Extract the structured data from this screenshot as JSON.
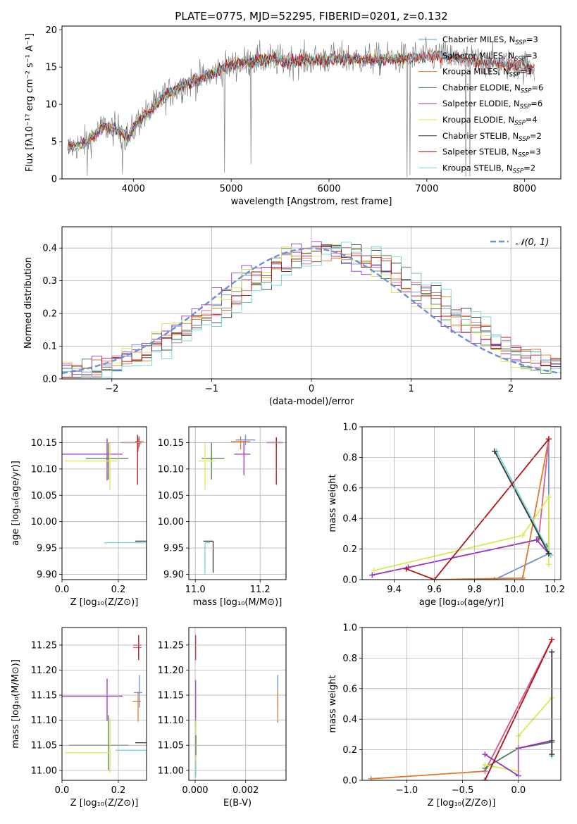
{
  "figure_title": "PLATE=0775, MJD=52295, FIBERID=0201, z=0.132",
  "colors": {
    "chabrier_miles": "#6a90d8",
    "salpeter_miles": "#e05c8a",
    "kroupa_miles": "#e07a2a",
    "chabrier_elodie": "#4d7f4a",
    "salpeter_elodie": "#9b30c0",
    "kroupa_elodie": "#d8ea50",
    "chabrier_stelib": "#333333",
    "salpeter_stelib": "#b01818",
    "kroupa_stelib": "#70d8d8",
    "normal": "#6a90d8",
    "grid": "#b0b0b0"
  },
  "legend_spectrum": [
    {
      "label": "Chabrier MILES, N",
      "sub": "SSP",
      "suffix": "=3",
      "color": "#6a90d8"
    },
    {
      "label": "Salpeter MILES, N",
      "sub": "SSP",
      "suffix": "=3",
      "color": "#e05c8a"
    },
    {
      "label": "Kroupa MILES, N",
      "sub": "SSP",
      "suffix": "=3",
      "color": "#e07a2a"
    },
    {
      "label": "Chabrier ELODIE, N",
      "sub": "SSP",
      "suffix": "=6",
      "color": "#4d7f4a"
    },
    {
      "label": "Salpeter ELODIE, N",
      "sub": "SSP",
      "suffix": "=6",
      "color": "#9b30c0"
    },
    {
      "label": "Kroupa ELODIE, N",
      "sub": "SSP",
      "suffix": "=4",
      "color": "#d8ea50"
    },
    {
      "label": "Chabrier STELIB, N",
      "sub": "SSP",
      "suffix": "=2",
      "color": "#333333"
    },
    {
      "label": "Salpeter STELIB, N",
      "sub": "SSP",
      "suffix": "=3",
      "color": "#b01818"
    },
    {
      "label": "Kroupa STELIB, N",
      "sub": "SSP",
      "suffix": "=2",
      "color": "#70d8d8"
    }
  ],
  "chart_data": [
    {
      "id": "spectrum",
      "type": "line",
      "xlabel": "wavelength [Angstrom, rest frame]",
      "ylabel": "Flux [fλ10⁻¹⁷ erg cm⁻² s⁻¹ A⁻¹]",
      "xlim": [
        3270,
        8370
      ],
      "ylim": [
        0,
        20.5
      ],
      "xticks": [
        4000,
        5000,
        6000,
        7000,
        8000
      ],
      "yticks": [
        0,
        5,
        10,
        15,
        20
      ],
      "grid": false,
      "legend_position": "right",
      "envelope_anchors": {
        "x": [
          3350,
          3500,
          3700,
          3850,
          3950,
          4050,
          4150,
          4300,
          4500,
          4700,
          4900,
          5100,
          5300,
          5600,
          5900,
          6200,
          6500,
          6800,
          7100,
          7400,
          7700,
          8000,
          8100
        ],
        "y": [
          4.2,
          4.8,
          7.0,
          6.5,
          5.5,
          7.8,
          8.8,
          11.0,
          12.5,
          13.5,
          14.8,
          15.5,
          16.0,
          15.8,
          16.0,
          16.1,
          16.0,
          16.2,
          16.5,
          16.0,
          15.6,
          15.1,
          14.8
        ]
      },
      "dropouts": [
        {
          "x": 3530,
          "y": 0.4
        },
        {
          "x": 3890,
          "y": 0.6
        },
        {
          "x": 4930,
          "y": 0.8
        },
        {
          "x": 5200,
          "y": 2.0
        },
        {
          "x": 6800,
          "y": 0.2
        },
        {
          "x": 6830,
          "y": 0.5
        },
        {
          "x": 7400,
          "y": 0.3
        },
        {
          "x": 7440,
          "y": 0.3
        }
      ]
    },
    {
      "id": "residual_hist",
      "type": "histogram",
      "xlabel": "(data-model)/error",
      "ylabel": "Normed distribution",
      "xlim": [
        -2.5,
        2.5
      ],
      "ylim": [
        0,
        0.465
      ],
      "xticks": [
        -2,
        -1,
        0,
        1,
        2
      ],
      "yticks": [
        0.0,
        0.1,
        0.2,
        0.3,
        0.4
      ],
      "grid": true,
      "bin_width": 0.1,
      "legend": [
        {
          "label": "𝒩(0, 1)",
          "style": "dashed",
          "color": "#6a90d8"
        }
      ],
      "legend_position": "top-right",
      "reference_curve": {
        "name": "𝒩(0, 1)",
        "mu": 0,
        "sigma": 1
      }
    },
    {
      "id": "age_vs_Z",
      "type": "errorbar",
      "xlabel": "Z [log₁₀(Z/Z⊙)]",
      "ylabel": "age  [log₁₀(age/yr)]",
      "xlim": [
        0.0,
        0.3
      ],
      "ylim": [
        9.89,
        10.18
      ],
      "xticks": [
        0.0,
        0.2
      ],
      "yticks": [
        9.9,
        9.95,
        10.0,
        10.05,
        10.1,
        10.15
      ],
      "ytick_labels": [
        "9.90",
        "9.95",
        "10.00",
        "10.05",
        "10.10",
        "10.15"
      ],
      "grid": true,
      "points": [
        {
          "model": "chabrier_miles",
          "x": 0.275,
          "xerr": [
            0.01,
            0.01
          ],
          "y": 10.152,
          "yerr": [
            0.01,
            0.01
          ]
        },
        {
          "model": "salpeter_miles",
          "x": 0.272,
          "xerr": [
            0.0,
            0.01
          ],
          "y": 10.148,
          "yerr": [
            0.01,
            0.01
          ]
        },
        {
          "model": "kroupa_miles",
          "x": 0.27,
          "xerr": [
            0.01,
            0.02
          ],
          "y": 10.152,
          "yerr": [
            0.02,
            0.01
          ]
        },
        {
          "model": "chabrier_elodie",
          "x": 0.165,
          "xerr": [
            0.08,
            0.07
          ],
          "y": 10.12,
          "yerr": [
            0.04,
            0.03
          ]
        },
        {
          "model": "salpeter_elodie",
          "x": 0.16,
          "xerr": [
            0.16,
            0.055
          ],
          "y": 10.128,
          "yerr": [
            0.05,
            0.03
          ]
        },
        {
          "model": "kroupa_elodie",
          "x": 0.17,
          "xerr": [
            0.16,
            0.025
          ],
          "y": 10.115,
          "yerr": [
            0.055,
            0.035
          ]
        },
        {
          "model": "chabrier_stelib",
          "x": 0.3,
          "xerr": [
            0.04,
            0.0
          ],
          "y": 9.963,
          "yerr": [
            0.06,
            0.0
          ]
        },
        {
          "model": "salpeter_stelib",
          "x": 0.268,
          "xerr": [
            0.06,
            0.01
          ],
          "y": 10.15,
          "yerr": [
            0.08,
            0.015
          ]
        },
        {
          "model": "kroupa_stelib",
          "x": 0.3,
          "xerr": [
            0.15,
            0.0
          ],
          "y": 9.96,
          "yerr": [
            0.06,
            0.0
          ]
        }
      ]
    },
    {
      "id": "age_vs_mass",
      "type": "errorbar",
      "xlabel": "mass [log₁₀(M/M⊙)]",
      "ylabel": "",
      "xlim": [
        10.98,
        11.28
      ],
      "ylim": [
        9.89,
        10.18
      ],
      "xticks": [
        11.0,
        11.2
      ],
      "yticks": [
        9.9,
        9.95,
        10.0,
        10.05,
        10.1,
        10.15
      ],
      "ytick_labels": [
        "9.90",
        "9.95",
        "10.00",
        "10.05",
        "10.10",
        "10.15"
      ],
      "grid": true,
      "points": [
        {
          "model": "chabrier_miles",
          "x": 11.155,
          "xerr": [
            0.03,
            0.03
          ],
          "y": 10.155,
          "yerr": [
            0.01,
            0.01
          ]
        },
        {
          "model": "salpeter_miles",
          "x": 11.25,
          "xerr": [
            0.03,
            0.02
          ],
          "y": 10.15,
          "yerr": [
            0.01,
            0.01
          ]
        },
        {
          "model": "kroupa_miles",
          "x": 11.14,
          "xerr": [
            0.03,
            0.03
          ],
          "y": 10.152,
          "yerr": [
            0.015,
            0.01
          ]
        },
        {
          "model": "chabrier_elodie",
          "x": 11.05,
          "xerr": [
            0.03,
            0.04
          ],
          "y": 10.12,
          "yerr": [
            0.04,
            0.03
          ]
        },
        {
          "model": "salpeter_elodie",
          "x": 11.15,
          "xerr": [
            0.03,
            0.02
          ],
          "y": 10.128,
          "yerr": [
            0.04,
            0.025
          ]
        },
        {
          "model": "kroupa_elodie",
          "x": 11.03,
          "xerr": [
            0.02,
            0.03
          ],
          "y": 10.115,
          "yerr": [
            0.055,
            0.035
          ]
        },
        {
          "model": "chabrier_stelib",
          "x": 11.055,
          "xerr": [
            0.03,
            0.0
          ],
          "y": 9.963,
          "yerr": [
            0.06,
            0.0
          ]
        },
        {
          "model": "salpeter_stelib",
          "x": 11.25,
          "xerr": [
            0.03,
            0.02
          ],
          "y": 10.15,
          "yerr": [
            0.08,
            0.01
          ]
        },
        {
          "model": "kroupa_stelib",
          "x": 11.03,
          "xerr": [
            0.0,
            0.015
          ],
          "y": 9.96,
          "yerr": [
            0.06,
            0.0
          ]
        }
      ]
    },
    {
      "id": "weight_vs_age",
      "type": "line",
      "xlabel": "age  [log₁₀(age/yr)]",
      "ylabel": "mass weight",
      "xlim": [
        9.24,
        10.23
      ],
      "ylim": [
        0,
        1.0
      ],
      "xticks": [
        9.4,
        9.6,
        9.8,
        10.0,
        10.2
      ],
      "yticks": [
        0.0,
        0.2,
        0.4,
        0.6,
        0.8,
        1.0
      ],
      "grid": true,
      "series": [
        {
          "model": "chabrier_miles",
          "x": [
            9.9,
            10.17,
            10.17
          ],
          "y": [
            0.0,
            0.17,
            0.92
          ]
        },
        {
          "model": "kroupa_miles",
          "x": [
            9.6,
            10.04,
            10.17
          ],
          "y": [
            0.0,
            0.01,
            0.92
          ]
        },
        {
          "model": "salpeter_miles",
          "x": [
            10.12,
            10.17
          ],
          "y": [
            0.27,
            0.92
          ]
        },
        {
          "model": "chabrier_elodie",
          "x": [
            10.12,
            10.16,
            10.17
          ],
          "y": [
            0.28,
            0.22,
            0.17
          ]
        },
        {
          "model": "kroupa_elodie",
          "x": [
            9.3,
            10.04,
            10.17,
            10.17
          ],
          "y": [
            0.06,
            0.29,
            0.54,
            0.1
          ]
        },
        {
          "model": "salpeter_elodie",
          "x": [
            9.29,
            9.47,
            10.11,
            10.17
          ],
          "y": [
            0.03,
            0.08,
            0.26,
            0.17
          ]
        },
        {
          "model": "kroupa_stelib",
          "x": [
            9.91,
            10.18
          ],
          "y": [
            0.84,
            0.16
          ]
        },
        {
          "model": "chabrier_stelib",
          "x": [
            9.9,
            10.17
          ],
          "y": [
            0.84,
            0.17
          ]
        },
        {
          "model": "salpeter_stelib",
          "x": [
            9.46,
            9.6,
            10.17
          ],
          "y": [
            0.07,
            0.0,
            0.92
          ]
        }
      ]
    },
    {
      "id": "mass_vs_Z",
      "type": "errorbar",
      "xlabel": "Z [log₁₀(Z/Z⊙)]",
      "ylabel": "mass [log₁₀(M/M⊙)]",
      "xlim": [
        0.0,
        0.3
      ],
      "ylim": [
        10.98,
        11.285
      ],
      "xticks": [
        0.0,
        0.2
      ],
      "yticks": [
        11.0,
        11.05,
        11.1,
        11.15,
        11.2,
        11.25
      ],
      "ytick_labels": [
        "11.00",
        "11.05",
        "11.10",
        "11.15",
        "11.20",
        "11.25"
      ],
      "grid": true,
      "points": [
        {
          "model": "chabrier_miles",
          "x": 0.275,
          "xerr": [
            0.02,
            0.01
          ],
          "y": 11.155,
          "yerr": [
            0.03,
            0.035
          ]
        },
        {
          "model": "salpeter_miles",
          "x": 0.272,
          "xerr": [
            0.02,
            0.01
          ],
          "y": 11.245,
          "yerr": [
            0.02,
            0.02
          ]
        },
        {
          "model": "kroupa_miles",
          "x": 0.27,
          "xerr": [
            0.02,
            0.01
          ],
          "y": 11.137,
          "yerr": [
            0.04,
            0.02
          ]
        },
        {
          "model": "chabrier_elodie",
          "x": 0.165,
          "xerr": [
            0.14,
            0.07
          ],
          "y": 11.05,
          "yerr": [
            0.05,
            0.06
          ]
        },
        {
          "model": "salpeter_elodie",
          "x": 0.16,
          "xerr": [
            0.16,
            0.055
          ],
          "y": 11.148,
          "yerr": [
            0.05,
            0.035
          ]
        },
        {
          "model": "kroupa_elodie",
          "x": 0.17,
          "xerr": [
            0.16,
            0.0
          ],
          "y": 11.035,
          "yerr": [
            0.04,
            0.07
          ]
        },
        {
          "model": "chabrier_stelib",
          "x": 0.3,
          "xerr": [
            0.04,
            0.0
          ],
          "y": 11.055,
          "yerr": [
            0.0,
            0.0
          ]
        },
        {
          "model": "salpeter_stelib",
          "x": 0.272,
          "xerr": [
            0.02,
            0.01
          ],
          "y": 11.25,
          "yerr": [
            0.03,
            0.02
          ]
        },
        {
          "model": "kroupa_stelib",
          "x": 0.3,
          "xerr": [
            0.11,
            0.0
          ],
          "y": 11.04,
          "yerr": [
            0.04,
            0.0
          ]
        }
      ]
    },
    {
      "id": "mass_vs_ebv",
      "type": "errorbar",
      "xlabel": "E(B-V)",
      "ylabel": "",
      "xlim": [
        -0.00025,
        0.0036
      ],
      "ylim": [
        10.98,
        11.285
      ],
      "xticks": [
        0.0,
        0.002
      ],
      "xtick_labels": [
        "0.000",
        "0.002"
      ],
      "yticks": [
        11.0,
        11.05,
        11.1,
        11.15,
        11.2,
        11.25
      ],
      "ytick_labels": [
        "11.00",
        "11.05",
        "11.10",
        "11.15",
        "11.20",
        "11.25"
      ],
      "grid": true,
      "points": [
        {
          "model": "chabrier_miles",
          "x": 0.00327,
          "xerr": [
            0,
            0
          ],
          "y": 11.155,
          "yerr": [
            0.03,
            0.035
          ]
        },
        {
          "model": "kroupa_miles",
          "x": 0.00327,
          "xerr": [
            0,
            0
          ],
          "y": 11.13,
          "yerr": [
            0.035,
            0.03
          ]
        },
        {
          "model": "salpeter_stelib",
          "x": 2e-05,
          "xerr": [
            0,
            0
          ],
          "y": 11.25,
          "yerr": [
            0.03,
            0.02
          ]
        },
        {
          "model": "salpeter_elodie",
          "x": 2e-05,
          "xerr": [
            0,
            0
          ],
          "y": 11.14,
          "yerr": [
            0.05,
            0.04
          ]
        },
        {
          "model": "kroupa_elodie",
          "x": 3e-05,
          "xerr": [
            0,
            0
          ],
          "y": 11.05,
          "yerr": [
            0.06,
            0.05
          ]
        },
        {
          "model": "chabrier_elodie",
          "x": 3e-05,
          "xerr": [
            0,
            0
          ],
          "y": 11.05,
          "yerr": [
            0.02,
            0.02
          ]
        },
        {
          "model": "kroupa_stelib",
          "x": 2e-05,
          "xerr": [
            0,
            0
          ],
          "y": 11.0,
          "yerr": [
            0.015,
            0.02
          ]
        }
      ]
    },
    {
      "id": "weight_vs_Z",
      "type": "line",
      "xlabel": "Z [log₁₀(Z/Z⊙)]",
      "ylabel": "mass weight",
      "xlim": [
        -1.4,
        0.38
      ],
      "ylim": [
        0,
        1.0
      ],
      "xticks": [
        -1.0,
        -0.5,
        0.0
      ],
      "xtick_labels": [
        "−1.0",
        "−0.5",
        "0.0"
      ],
      "yticks": [
        0.0,
        0.2,
        0.4,
        0.6,
        0.8,
        1.0
      ],
      "grid": true,
      "series": [
        {
          "model": "chabrier_miles",
          "x": [
            -0.3,
            0.3
          ],
          "y": [
            0.0,
            0.92
          ]
        },
        {
          "model": "kroupa_miles",
          "x": [
            -1.32,
            -0.3,
            0.3
          ],
          "y": [
            0.01,
            0.06,
            0.92
          ]
        },
        {
          "model": "salpeter_miles",
          "x": [
            -0.3,
            0.3
          ],
          "y": [
            0.06,
            0.92
          ]
        },
        {
          "model": "chabrier_elodie",
          "x": [
            -0.3,
            0.0,
            0.3
          ],
          "y": [
            0.08,
            0.21,
            0.25
          ]
        },
        {
          "model": "kroupa_elodie",
          "x": [
            -0.3,
            0.0,
            0.0,
            0.3
          ],
          "y": [
            0.1,
            0.06,
            0.29,
            0.54
          ]
        },
        {
          "model": "salpeter_elodie",
          "x": [
            -0.3,
            0.0,
            0.0,
            0.3
          ],
          "y": [
            0.17,
            0.03,
            0.21,
            0.26
          ]
        },
        {
          "model": "kroupa_stelib",
          "x": [
            0.3,
            0.3
          ],
          "y": [
            0.84,
            0.16
          ]
        },
        {
          "model": "chabrier_stelib",
          "x": [
            0.3,
            0.3
          ],
          "y": [
            0.84,
            0.17
          ]
        },
        {
          "model": "salpeter_stelib",
          "x": [
            -0.3,
            0.3
          ],
          "y": [
            0.0,
            0.92
          ]
        }
      ]
    }
  ]
}
